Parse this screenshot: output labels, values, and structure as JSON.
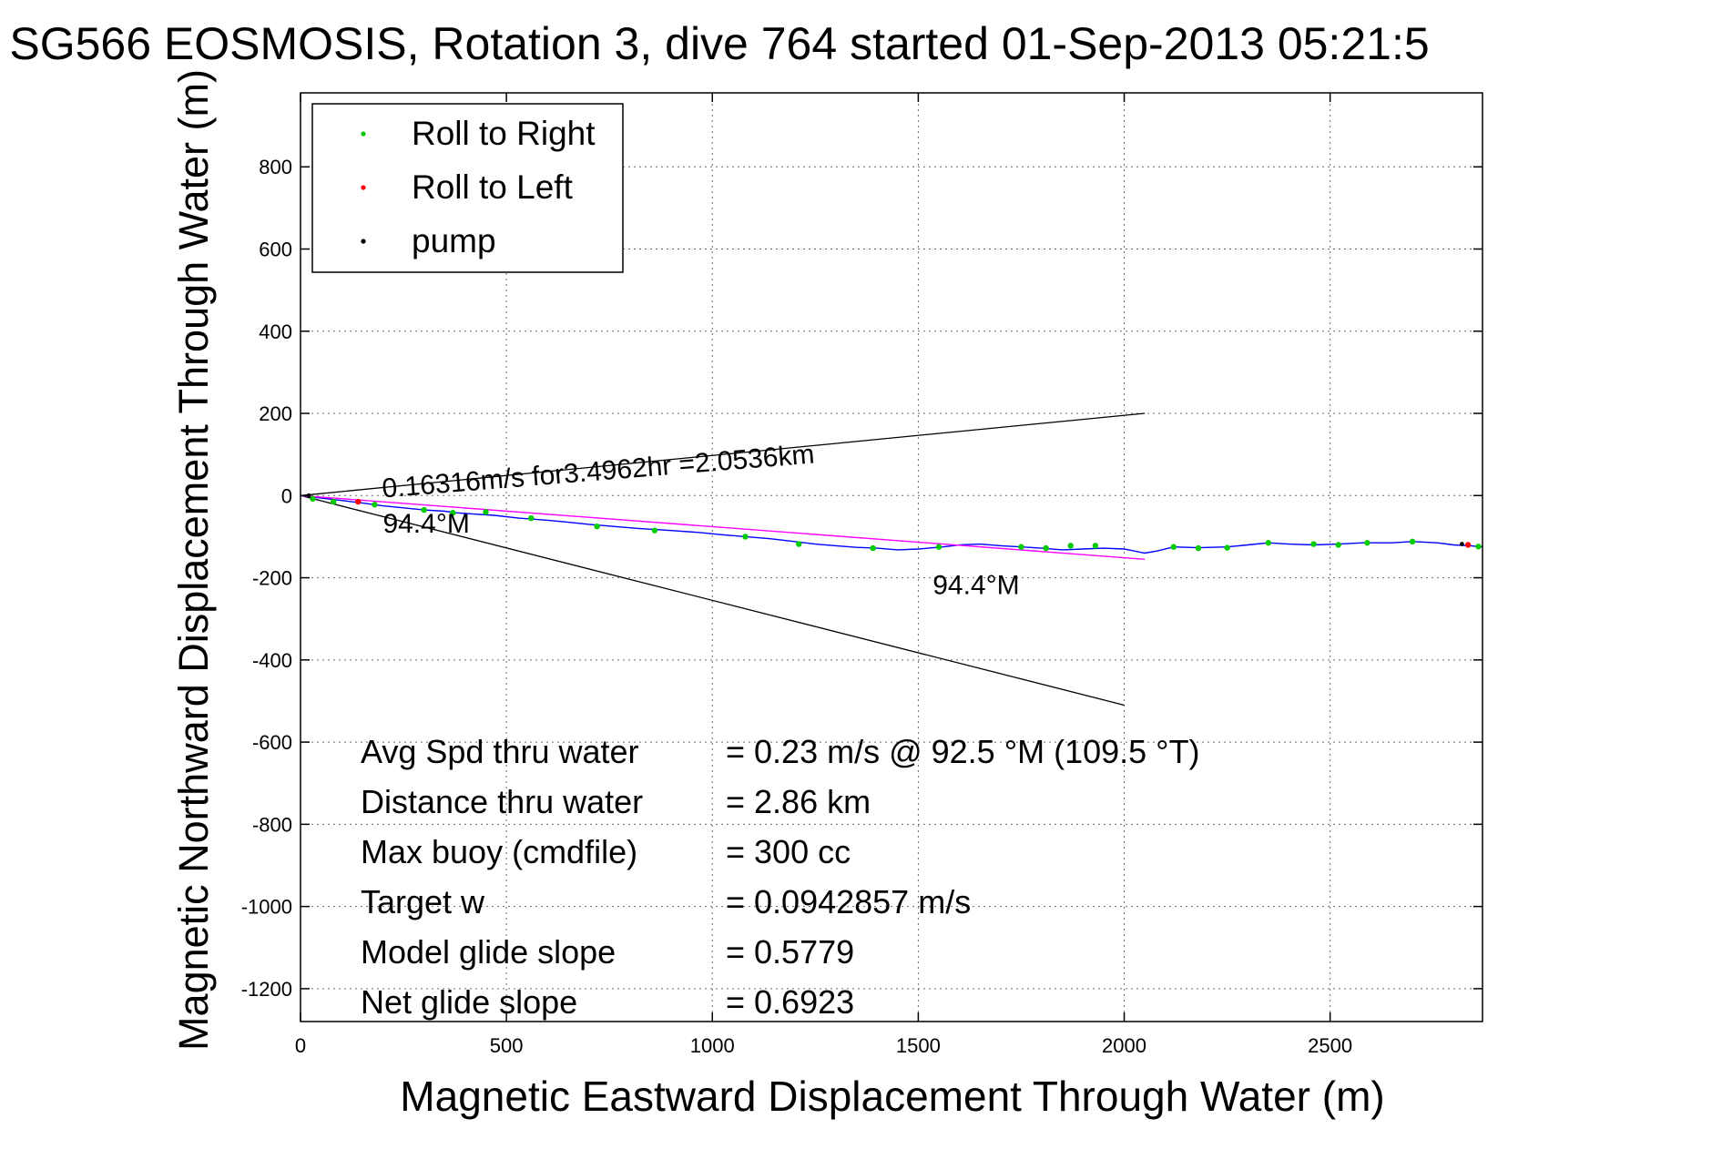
{
  "chart_data": {
    "type": "line",
    "title": "SG566 EOSMOSIS, Rotation 3, dive 764 started 01-Sep-2013 05:21:5",
    "xlabel": "Magnetic Eastward Displacement Through Water (m)",
    "ylabel": "Magnetic Northward Displacement Through Water (m)",
    "xlim": [
      0,
      2870
    ],
    "ylim": [
      -1280,
      980
    ],
    "x_ticks": [
      0,
      500,
      1000,
      1500,
      2000,
      2500
    ],
    "x_tick_labels": [
      "0",
      "500",
      "1000",
      "1500",
      "2000",
      "2500"
    ],
    "y_ticks": [
      800,
      600,
      400,
      200,
      0,
      -200,
      -400,
      -600,
      -800,
      -1000,
      -1200
    ],
    "y_tick_labels": [
      "800",
      "600",
      "400",
      "200",
      "0",
      "-200",
      "-400",
      "-600",
      "-800",
      "-1000",
      "-1200"
    ],
    "grid": true,
    "legend_position": "top-left",
    "legend": [
      {
        "label": "Roll to Right",
        "color": "#00cc00"
      },
      {
        "label": "Roll to Left",
        "color": "#ff0000"
      },
      {
        "label": "pump",
        "color": "#000000"
      }
    ],
    "track": {
      "color": "#0000ff",
      "x": [
        0,
        40,
        100,
        150,
        200,
        250,
        300,
        350,
        380,
        420,
        470,
        530,
        600,
        650,
        700,
        760,
        820,
        900,
        970,
        1020,
        1080,
        1140,
        1200,
        1250,
        1300,
        1350,
        1400,
        1450,
        1500,
        1560,
        1600,
        1650,
        1700,
        1750,
        1800,
        1850,
        1900,
        1950,
        2000,
        2050,
        2080,
        2120,
        2180,
        2250,
        2300,
        2350,
        2400,
        2460,
        2520,
        2580,
        2650,
        2700,
        2760,
        2800,
        2840,
        2870
      ],
      "y": [
        0,
        -5,
        -12,
        -18,
        -25,
        -30,
        -35,
        -38,
        -42,
        -45,
        -48,
        -55,
        -60,
        -65,
        -70,
        -75,
        -80,
        -85,
        -90,
        -95,
        -100,
        -105,
        -112,
        -118,
        -122,
        -126,
        -128,
        -132,
        -130,
        -125,
        -120,
        -118,
        -122,
        -125,
        -128,
        -132,
        -130,
        -128,
        -130,
        -140,
        -135,
        -125,
        -127,
        -125,
        -120,
        -115,
        -118,
        -120,
        -118,
        -115,
        -115,
        -112,
        -115,
        -120,
        -122,
        -125
      ]
    },
    "roll_right_points": {
      "color": "#00cc00",
      "x": [
        30,
        80,
        180,
        300,
        370,
        450,
        560,
        720,
        860,
        1080,
        1210,
        1390,
        1550,
        1750,
        1810,
        1870,
        1930,
        2120,
        2180,
        2250,
        2350,
        2460,
        2520,
        2590,
        2700,
        2860
      ],
      "y": [
        -8,
        -15,
        -22,
        -35,
        -42,
        -40,
        -55,
        -75,
        -85,
        -100,
        -118,
        -128,
        -125,
        -125,
        -128,
        -122,
        -122,
        -125,
        -128,
        -127,
        -115,
        -118,
        -120,
        -115,
        -112,
        -124
      ]
    },
    "roll_left_points": {
      "color": "#ff0000",
      "x": [
        140,
        2835
      ],
      "y": [
        -15,
        -120
      ]
    },
    "pump_points": {
      "color": "#000000",
      "x": [
        20,
        2820
      ],
      "y": [
        0,
        -118
      ]
    },
    "fit_line": {
      "color": "#ff00ff",
      "x": [
        0,
        2050
      ],
      "y": [
        0,
        -155
      ]
    },
    "cone_upper": {
      "color": "#000000",
      "x": [
        0,
        2050
      ],
      "y": [
        0,
        200
      ]
    },
    "cone_lower": {
      "color": "#000000",
      "x": [
        0,
        2000
      ],
      "y": [
        0,
        -510
      ]
    },
    "annotations": [
      {
        "text": "0.16316m/s for3.4962hr =2.0536km",
        "x": 200,
        "y": -5,
        "rotate": -4.6,
        "size": 30
      },
      {
        "text": "94.4°M",
        "x": 200,
        "y": -90,
        "rotate": 0,
        "size": 30
      },
      {
        "text": "94.4°M",
        "x": 1535,
        "y": -240,
        "rotate": 0,
        "size": 30
      }
    ],
    "info": [
      {
        "label": "Avg Spd thru water",
        "value": "=  0.23 m/s @  92.5 °M (109.5 °T)"
      },
      {
        "label": "Distance thru water",
        "value": "=  2.86 km"
      },
      {
        "label": "Max buoy (cmdfile)",
        "value": "= 300 cc"
      },
      {
        "label": "Target w",
        "value": "= 0.0942857 m/s"
      },
      {
        "label": "Model glide slope",
        "value": "= 0.5779"
      },
      {
        "label": "Net glide slope",
        "value": "= 0.6923"
      }
    ]
  }
}
